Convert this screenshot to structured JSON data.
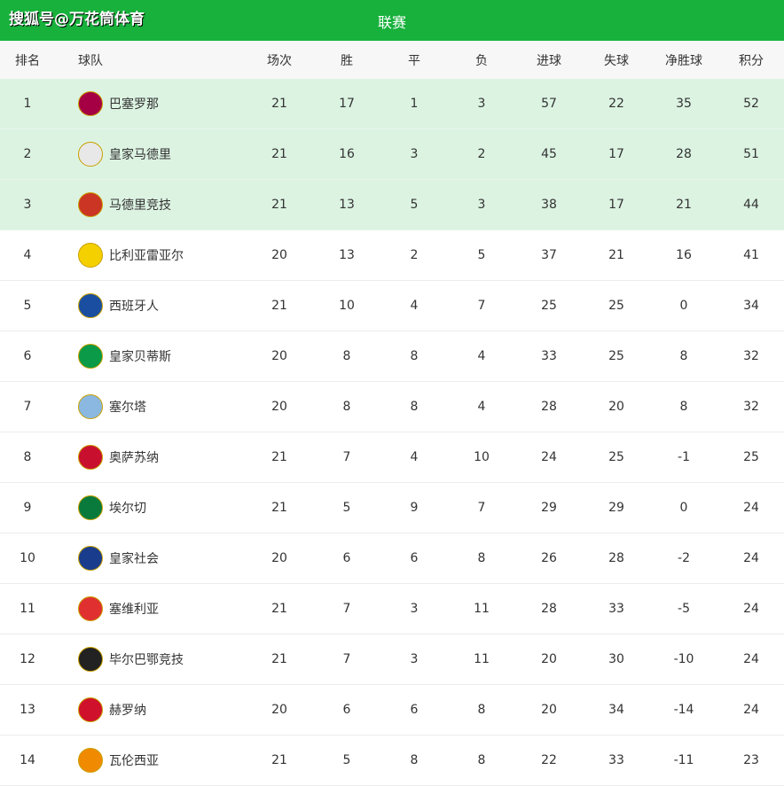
{
  "watermark": "搜狐号@万花筒体育",
  "title": "联赛",
  "headers": [
    "排名",
    "球队",
    "场次",
    "胜",
    "平",
    "负",
    "进球",
    "失球",
    "净胜球",
    "积分"
  ],
  "rows": [
    [
      "1",
      "巴塞罗那",
      "21",
      "17",
      "1",
      "3",
      "57",
      "22",
      "35",
      "52"
    ],
    [
      "2",
      "皇家马德里",
      "21",
      "16",
      "3",
      "2",
      "45",
      "17",
      "28",
      "51"
    ],
    [
      "3",
      "马德里竞技",
      "21",
      "13",
      "5",
      "3",
      "38",
      "17",
      "21",
      "44"
    ],
    [
      "4",
      "比利亚雷亚尔",
      "20",
      "13",
      "2",
      "5",
      "37",
      "21",
      "16",
      "41"
    ],
    [
      "5",
      "西班牙人",
      "21",
      "10",
      "4",
      "7",
      "25",
      "25",
      "0",
      "34"
    ],
    [
      "6",
      "皇家贝蒂斯",
      "20",
      "8",
      "8",
      "4",
      "33",
      "25",
      "8",
      "32"
    ],
    [
      "7",
      "塞尔塔",
      "20",
      "8",
      "8",
      "4",
      "28",
      "20",
      "8",
      "32"
    ],
    [
      "8",
      "奥萨苏纳",
      "21",
      "7",
      "4",
      "10",
      "24",
      "25",
      "-1",
      "25"
    ],
    [
      "9",
      "埃尔切",
      "21",
      "5",
      "9",
      "7",
      "29",
      "29",
      "0",
      "24"
    ],
    [
      "10",
      "皇家社会",
      "20",
      "6",
      "6",
      "8",
      "26",
      "28",
      "-2",
      "24"
    ],
    [
      "11",
      "塞维利亚",
      "21",
      "7",
      "3",
      "11",
      "28",
      "33",
      "-5",
      "24"
    ],
    [
      "12",
      "毕尔巴鄂竞技",
      "21",
      "7",
      "3",
      "11",
      "20",
      "30",
      "-10",
      "24"
    ],
    [
      "13",
      "赫罗纳",
      "20",
      "6",
      "6",
      "8",
      "20",
      "34",
      "-14",
      "24"
    ],
    [
      "14",
      "瓦伦西亚",
      "21",
      "5",
      "8",
      "8",
      "22",
      "33",
      "-11",
      "23"
    ]
  ],
  "logo_colors": [
    "#a50044",
    "#e8e8e8",
    "#cb3524",
    "#f5d000",
    "#1a4ea0",
    "#0a9a48",
    "#8ab8e0",
    "#c8102e",
    "#0a7a3c",
    "#1a3c8c",
    "#e03030",
    "#222222",
    "#d0112b",
    "#f08a00"
  ],
  "highlight_color": "#dcf3e2",
  "accent": "#17b13c"
}
